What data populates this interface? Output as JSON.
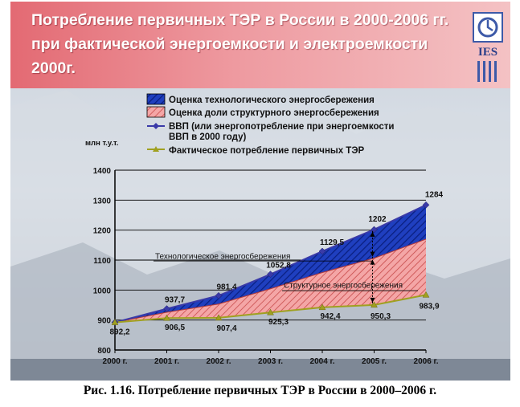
{
  "slide": {
    "title": "Потребление первичных ТЭР в России в 2000-2006 гг. при фактической энергоемкости и электроемкости 2000г.",
    "logo_text": "IES"
  },
  "caption": "Рис. 1.16. Потребление первичных ТЭР в России в 2000–2006 г.",
  "colors": {
    "header": "#e36a73",
    "tech_fill": "#1f3fbf",
    "struct_fill": "#f08f8f",
    "gdp_line": "#3a3aa8",
    "actual_line": "#a0a020"
  },
  "chart_data": {
    "type": "area",
    "ylabel": "млн т.у.т.",
    "ylim": [
      800,
      1400
    ],
    "yticks": [
      800,
      900,
      1000,
      1100,
      1200,
      1300,
      1400
    ],
    "grid": true,
    "categories": [
      "2000 г.",
      "2001 г.",
      "2002 г.",
      "2003 г.",
      "2004 г.",
      "2005 г.",
      "2006 г."
    ],
    "series": [
      {
        "name": "ВВП (или энергопотребление при энергоемкости ВВП в 2000 году)",
        "kind": "line",
        "values": [
          892.2,
          937.7,
          981.4,
          1052.8,
          1129.5,
          1202,
          1284
        ],
        "labels": [
          "",
          "937,7",
          "981,4",
          "1052,8",
          "1129,5",
          "1202",
          "1284"
        ]
      },
      {
        "name": "Фактическое потребление первичных ТЭР",
        "kind": "line",
        "values": [
          892.2,
          906.5,
          907.4,
          925.3,
          942.4,
          950.3,
          983.9
        ],
        "labels": [
          "892,2",
          "906,5",
          "907,4",
          "925,3",
          "942,4",
          "950,3",
          "983,9"
        ]
      },
      {
        "name": "Оценка технологического энергосбережения",
        "kind": "area"
      },
      {
        "name": "Оценка доли структурного энергосбережения",
        "kind": "area"
      }
    ],
    "legend": {
      "position": "top",
      "entries": [
        "Оценка технологического энергосбережения",
        "Оценка доли структурного энергосбережения",
        "ВВП (или энергопотребление при энергоемкости",
        "ВВП в   2000 году)",
        "Фактическое потребление первичных ТЭР"
      ]
    },
    "annotations": [
      "Технологическое энергосбережения",
      "Структурное энергосбережения"
    ]
  }
}
